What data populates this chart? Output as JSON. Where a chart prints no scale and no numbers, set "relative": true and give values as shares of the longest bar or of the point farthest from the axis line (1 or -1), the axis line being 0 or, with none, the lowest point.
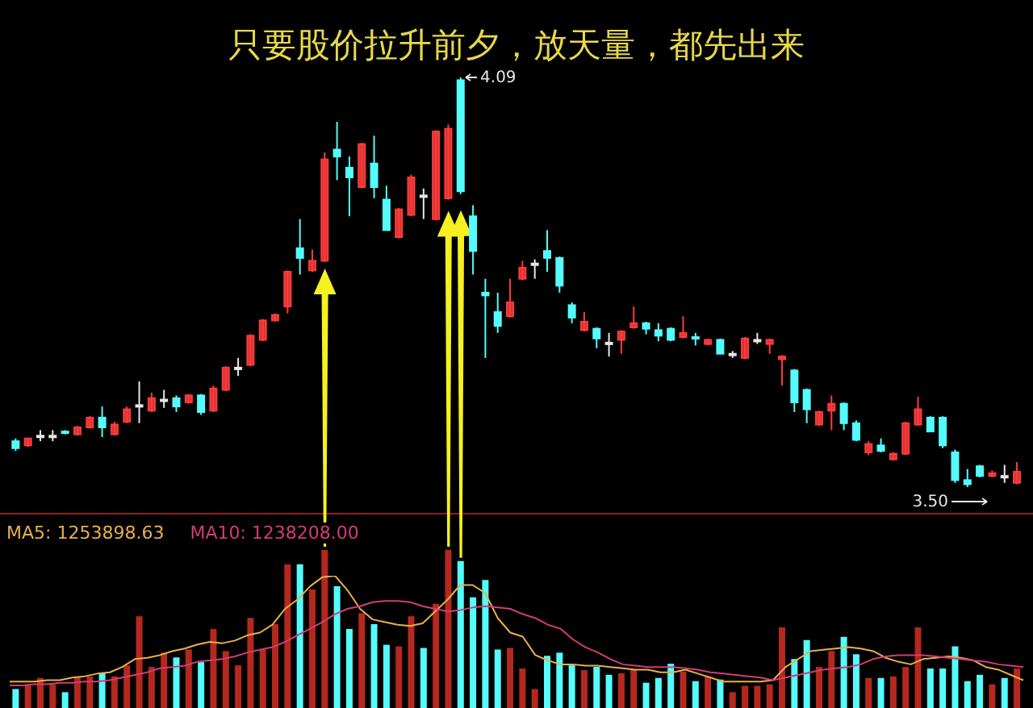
{
  "chart_data": [
    {
      "type": "candlestick",
      "title": "只要股价拉升前夕，放天量，都先出来",
      "tick_labels": false,
      "categories": [
        null,
        null,
        null,
        null,
        null,
        null,
        null,
        null,
        null,
        null,
        null,
        null,
        null,
        null,
        null,
        null,
        null,
        null,
        null,
        null,
        null,
        null,
        null,
        null,
        null,
        null,
        null,
        null,
        null,
        null,
        null,
        null,
        null,
        null,
        null,
        null,
        null,
        null,
        null,
        null,
        null,
        null,
        null,
        null,
        null,
        null,
        null,
        null,
        null,
        null,
        null,
        null,
        null,
        null,
        null,
        null,
        null,
        null,
        null,
        null,
        null,
        null,
        null,
        null,
        null,
        null,
        null,
        null,
        null,
        null,
        null,
        null,
        null,
        null,
        null,
        null,
        null,
        null,
        null,
        null,
        null,
        null
      ],
      "ohlc": [
        [
          3.566,
          3.57,
          3.552,
          3.556
        ],
        [
          3.56,
          3.57,
          3.558,
          3.57
        ],
        [
          3.574,
          3.582,
          3.566,
          3.574
        ],
        [
          3.574,
          3.582,
          3.566,
          3.574
        ],
        [
          3.58,
          3.582,
          3.576,
          3.578
        ],
        [
          3.576,
          3.588,
          3.574,
          3.586
        ],
        [
          3.586,
          3.602,
          3.584,
          3.6
        ],
        [
          3.6,
          3.616,
          3.572,
          3.586
        ],
        [
          3.576,
          3.594,
          3.574,
          3.59
        ],
        [
          3.594,
          3.616,
          3.592,
          3.612
        ],
        [
          3.618,
          3.652,
          3.592,
          3.618
        ],
        [
          3.61,
          3.636,
          3.608,
          3.628
        ],
        [
          3.626,
          3.64,
          3.614,
          3.626
        ],
        [
          3.628,
          3.632,
          3.608,
          3.616
        ],
        [
          3.622,
          3.634,
          3.62,
          3.632
        ],
        [
          3.632,
          3.634,
          3.604,
          3.608
        ],
        [
          3.61,
          3.646,
          3.608,
          3.642
        ],
        [
          3.64,
          3.674,
          3.638,
          3.672
        ],
        [
          3.672,
          3.686,
          3.66,
          3.672
        ],
        [
          3.676,
          3.72,
          3.674,
          3.718
        ],
        [
          3.712,
          3.742,
          3.71,
          3.74
        ],
        [
          3.74,
          3.75,
          3.738,
          3.748
        ],
        [
          3.76,
          3.812,
          3.75,
          3.81
        ],
        [
          3.844,
          3.886,
          3.806,
          3.83
        ],
        [
          3.812,
          3.842,
          3.81,
          3.826
        ],
        [
          3.826,
          3.982,
          3.824,
          3.972
        ],
        [
          3.986,
          4.026,
          3.942,
          3.976
        ],
        [
          3.96,
          3.976,
          3.89,
          3.946
        ],
        [
          3.932,
          3.996,
          3.93,
          3.994
        ],
        [
          3.966,
          4.006,
          3.916,
          3.932
        ],
        [
          3.914,
          3.934,
          3.87,
          3.87
        ],
        [
          3.86,
          3.902,
          3.858,
          3.9
        ],
        [
          3.892,
          3.95,
          3.89,
          3.946
        ],
        [
          3.92,
          3.93,
          3.886,
          3.92
        ],
        [
          3.886,
          4.014,
          3.884,
          4.012
        ],
        [
          3.916,
          4.022,
          3.914,
          4.016
        ],
        [
          4.086,
          4.09,
          3.922,
          3.926
        ],
        [
          3.89,
          3.906,
          3.806,
          3.84
        ],
        [
          3.78,
          3.8,
          3.686,
          3.776
        ],
        [
          3.752,
          3.78,
          3.722,
          3.732
        ],
        [
          3.746,
          3.8,
          3.744,
          3.766
        ],
        [
          3.8,
          3.826,
          3.798,
          3.816
        ],
        [
          3.822,
          3.828,
          3.8,
          3.822
        ],
        [
          3.84,
          3.87,
          3.81,
          3.83
        ],
        [
          3.83,
          3.832,
          3.78,
          3.79
        ],
        [
          3.762,
          3.766,
          3.736,
          3.744
        ],
        [
          3.726,
          3.752,
          3.724,
          3.738
        ],
        [
          3.728,
          3.73,
          3.7,
          3.714
        ],
        [
          3.708,
          3.722,
          3.688,
          3.708
        ],
        [
          3.712,
          3.726,
          3.692,
          3.724
        ],
        [
          3.73,
          3.76,
          3.728,
          3.736
        ],
        [
          3.736,
          3.738,
          3.72,
          3.728
        ],
        [
          3.726,
          3.736,
          3.71,
          3.718
        ],
        [
          3.728,
          3.73,
          3.71,
          3.712
        ],
        [
          3.716,
          3.746,
          3.714,
          3.722
        ],
        [
          3.716,
          3.722,
          3.704,
          3.714
        ],
        [
          3.706,
          3.714,
          3.704,
          3.712
        ],
        [
          3.712,
          3.714,
          3.692,
          3.692
        ],
        [
          3.692,
          3.696,
          3.686,
          3.692
        ],
        [
          3.686,
          3.716,
          3.684,
          3.714
        ],
        [
          3.712,
          3.722,
          3.706,
          3.712
        ],
        [
          3.706,
          3.714,
          3.692,
          3.712
        ],
        [
          3.684,
          3.69,
          3.646,
          3.688
        ],
        [
          3.668,
          3.67,
          3.608,
          3.622
        ],
        [
          3.64,
          3.642,
          3.592,
          3.612
        ],
        [
          3.59,
          3.61,
          3.588,
          3.608
        ],
        [
          3.61,
          3.632,
          3.582,
          3.62
        ],
        [
          3.62,
          3.622,
          3.582,
          3.592
        ],
        [
          3.592,
          3.596,
          3.566,
          3.568
        ],
        [
          3.55,
          3.566,
          3.546,
          3.562
        ],
        [
          3.56,
          3.57,
          3.55,
          3.552
        ],
        [
          3.54,
          3.55,
          3.538,
          3.548
        ],
        [
          3.548,
          3.594,
          3.546,
          3.592
        ],
        [
          3.59,
          3.63,
          3.588,
          3.612
        ],
        [
          3.6,
          3.602,
          3.58,
          3.58
        ],
        [
          3.6,
          3.602,
          3.556,
          3.56
        ],
        [
          3.55,
          3.554,
          3.506,
          3.51
        ],
        [
          3.51,
          3.526,
          3.5,
          3.504
        ],
        [
          3.53,
          3.532,
          3.514,
          3.516
        ],
        [
          3.516,
          3.524,
          3.514,
          3.52
        ],
        [
          3.516,
          3.532,
          3.506,
          3.516
        ],
        [
          3.506,
          3.536,
          3.504,
          3.522
        ]
      ],
      "colors": [
        "#54fcfc",
        "#ff3c3c",
        "#e6e6e6",
        "#e6e6e6",
        "#54fcfc",
        "#ff3c3c",
        "#ff3c3c",
        "#54fcfc",
        "#ff3c3c",
        "#ff3c3c",
        "#e6e6e6",
        "#ff3c3c",
        "#e6e6e6",
        "#54fcfc",
        "#ff3c3c",
        "#54fcfc",
        "#ff3c3c",
        "#ff3c3c",
        "#e6e6e6",
        "#ff3c3c",
        "#ff3c3c",
        "#ff3c3c",
        "#ff3c3c",
        "#54fcfc",
        "#ff3c3c",
        "#ff3c3c",
        "#54fcfc",
        "#54fcfc",
        "#ff3c3c",
        "#54fcfc",
        "#54fcfc",
        "#ff3c3c",
        "#ff3c3c",
        "#e6e6e6",
        "#ff3c3c",
        "#ff3c3c",
        "#54fcfc",
        "#54fcfc",
        "#54fcfc",
        "#54fcfc",
        "#ff3c3c",
        "#ff3c3c",
        "#e6e6e6",
        "#54fcfc",
        "#54fcfc",
        "#54fcfc",
        "#ff3c3c",
        "#54fcfc",
        "#e6e6e6",
        "#ff3c3c",
        "#ff3c3c",
        "#54fcfc",
        "#54fcfc",
        "#54fcfc",
        "#ff3c3c",
        "#54fcfc",
        "#ff3c3c",
        "#54fcfc",
        "#e6e6e6",
        "#ff3c3c",
        "#e6e6e6",
        "#ff3c3c",
        "#ff3c3c",
        "#54fcfc",
        "#54fcfc",
        "#ff3c3c",
        "#ff3c3c",
        "#54fcfc",
        "#54fcfc",
        "#ff3c3c",
        "#54fcfc",
        "#ff3c3c",
        "#ff3c3c",
        "#ff3c3c",
        "#54fcfc",
        "#54fcfc",
        "#54fcfc",
        "#54fcfc",
        "#54fcfc",
        "#ff3c3c",
        "#e6e6e6",
        "#ff3c3c"
      ],
      "annotations": [
        "4.09",
        "3.50"
      ]
    },
    {
      "type": "bar",
      "relative": true,
      "tick_labels": false,
      "categories": [
        null,
        null,
        null,
        null,
        null,
        null,
        null,
        null,
        null,
        null,
        null,
        null,
        null,
        null,
        null,
        null,
        null,
        null,
        null,
        null,
        null,
        null,
        null,
        null,
        null,
        null,
        null,
        null,
        null,
        null,
        null,
        null,
        null,
        null,
        null,
        null,
        null,
        null,
        null,
        null,
        null,
        null,
        null,
        null,
        null,
        null,
        null,
        null,
        null,
        null,
        null,
        null,
        null,
        null,
        null,
        null,
        null,
        null,
        null,
        null,
        null,
        null,
        null,
        null,
        null,
        null,
        null,
        null,
        null,
        null,
        null,
        null,
        null,
        null,
        null,
        null,
        null,
        null,
        null,
        null,
        null,
        null
      ],
      "series": [
        {
          "type": "bar",
          "colors": [
            "#54fcfc",
            "#b4281e",
            "#b4281e",
            "#b4281e",
            "#54fcfc",
            "#b4281e",
            "#b4281e",
            "#54fcfc",
            "#b4281e",
            "#b4281e",
            "#b4281e",
            "#b4281e",
            "#b4281e",
            "#54fcfc",
            "#b4281e",
            "#54fcfc",
            "#b4281e",
            "#b4281e",
            "#b4281e",
            "#b4281e",
            "#b4281e",
            "#b4281e",
            "#b4281e",
            "#54fcfc",
            "#b4281e",
            "#b4281e",
            "#54fcfc",
            "#54fcfc",
            "#b4281e",
            "#54fcfc",
            "#54fcfc",
            "#b4281e",
            "#b4281e",
            "#54fcfc",
            "#b4281e",
            "#b4281e",
            "#54fcfc",
            "#54fcfc",
            "#54fcfc",
            "#54fcfc",
            "#b4281e",
            "#b4281e",
            "#b4281e",
            "#54fcfc",
            "#54fcfc",
            "#54fcfc",
            "#b4281e",
            "#54fcfc",
            "#54fcfc",
            "#b4281e",
            "#b4281e",
            "#54fcfc",
            "#54fcfc",
            "#54fcfc",
            "#b4281e",
            "#54fcfc",
            "#b4281e",
            "#54fcfc",
            "#b4281e",
            "#b4281e",
            "#b4281e",
            "#b4281e",
            "#b4281e",
            "#54fcfc",
            "#54fcfc",
            "#b4281e",
            "#b4281e",
            "#54fcfc",
            "#54fcfc",
            "#b4281e",
            "#54fcfc",
            "#b4281e",
            "#b4281e",
            "#b4281e",
            "#54fcfc",
            "#54fcfc",
            "#54fcfc",
            "#54fcfc",
            "#54fcfc",
            "#b4281e",
            "#54fcfc",
            "#b4281e"
          ],
          "values": [
            0.12,
            0.15,
            0.19,
            0.15,
            0.1,
            0.2,
            0.2,
            0.22,
            0.2,
            0.27,
            0.58,
            0.26,
            0.35,
            0.32,
            0.37,
            0.29,
            0.5,
            0.36,
            0.27,
            0.57,
            0.37,
            0.53,
            0.91,
            0.91,
            0.75,
            1,
            0.77,
            0.5,
            0.6,
            0.53,
            0.4,
            0.39,
            0.58,
            0.38,
            0.66,
            1,
            0.93,
            0.7,
            0.81,
            0.37,
            0.38,
            0.25,
            0.12,
            0.33,
            0.35,
            0.27,
            0.24,
            0.26,
            0.21,
            0.22,
            0.24,
            0.16,
            0.19,
            0.28,
            0.23,
            0.17,
            0.2,
            0.18,
            0.1,
            0.14,
            0.14,
            0.15,
            0.51,
            0.31,
            0.43,
            0.26,
            0.36,
            0.45,
            0.34,
            0.19,
            0.19,
            0.2,
            0.26,
            0.51,
            0.25,
            0.25,
            0.39,
            0.17,
            0.21,
            0.15,
            0.19,
            0.25
          ]
        }
      ]
    },
    {
      "type": "line",
      "relative": true,
      "tick_labels": false,
      "categories": [
        null,
        null,
        null,
        null,
        null,
        null,
        null,
        null,
        null,
        null,
        null,
        null,
        null,
        null,
        null,
        null,
        null,
        null,
        null,
        null,
        null,
        null,
        null,
        null,
        null,
        null,
        null,
        null,
        null,
        null,
        null,
        null,
        null,
        null,
        null,
        null,
        null,
        null,
        null,
        null,
        null,
        null,
        null,
        null,
        null,
        null,
        null,
        null,
        null,
        null,
        null,
        null,
        null,
        null,
        null,
        null,
        null,
        null,
        null,
        null,
        null,
        null,
        null,
        null,
        null,
        null,
        null,
        null,
        null,
        null,
        null,
        null,
        null,
        null,
        null,
        null,
        null,
        null,
        null,
        null,
        null,
        null
      ],
      "series": [
        {
          "name": "MA5: 1253898.63",
          "color": "#e8b04a",
          "values": [
            0.2,
            0.2,
            0.2,
            0.21,
            0.21,
            0.23,
            0.24,
            0.26,
            0.27,
            0.31,
            0.37,
            0.38,
            0.4,
            0.43,
            0.45,
            0.48,
            0.5,
            0.49,
            0.51,
            0.55,
            0.57,
            0.63,
            0.75,
            0.82,
            0.92,
            0.99,
            1,
            0.89,
            0.75,
            0.67,
            0.65,
            0.63,
            0.62,
            0.64,
            0.73,
            0.82,
            0.93,
            0.93,
            0.87,
            0.68,
            0.57,
            0.54,
            0.4,
            0.36,
            0.33,
            0.33,
            0.32,
            0.32,
            0.31,
            0.3,
            0.29,
            0.29,
            0.27,
            0.27,
            0.29,
            0.26,
            0.23,
            0.2,
            0.2,
            0.2,
            0.2,
            0.21,
            0.31,
            0.37,
            0.43,
            0.44,
            0.45,
            0.46,
            0.45,
            0.43,
            0.38,
            0.35,
            0.33,
            0.37,
            0.38,
            0.39,
            0.38,
            0.36,
            0.31,
            0.29,
            0.25,
            0.21
          ]
        },
        {
          "name": "MA10: 1238208.00",
          "color": "#d23c78",
          "values": [
            0.17,
            0.17,
            0.18,
            0.18,
            0.19,
            0.19,
            0.2,
            0.2,
            0.21,
            0.23,
            0.25,
            0.27,
            0.3,
            0.31,
            0.32,
            0.35,
            0.36,
            0.37,
            0.39,
            0.42,
            0.44,
            0.46,
            0.5,
            0.55,
            0.6,
            0.65,
            0.71,
            0.75,
            0.77,
            0.8,
            0.81,
            0.81,
            0.8,
            0.77,
            0.75,
            0.73,
            0.74,
            0.76,
            0.77,
            0.76,
            0.75,
            0.71,
            0.68,
            0.63,
            0.6,
            0.52,
            0.46,
            0.42,
            0.37,
            0.33,
            0.32,
            0.31,
            0.31,
            0.31,
            0.3,
            0.29,
            0.27,
            0.26,
            0.25,
            0.24,
            0.23,
            0.21,
            0.23,
            0.25,
            0.27,
            0.29,
            0.3,
            0.31,
            0.33,
            0.37,
            0.39,
            0.4,
            0.4,
            0.4,
            0.39,
            0.38,
            0.37,
            0.36,
            0.35,
            0.33,
            0.32,
            0.31
          ]
        }
      ]
    }
  ]
}
